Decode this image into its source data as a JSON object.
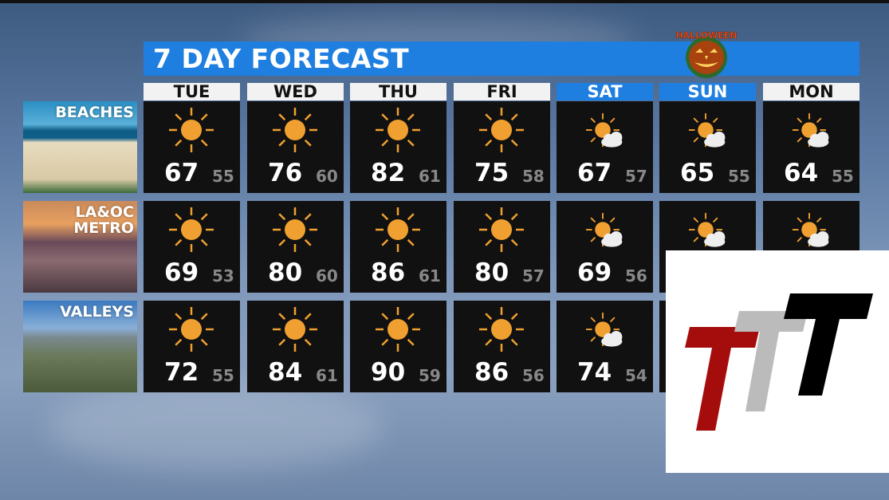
{
  "title": "7 DAY FORECAST",
  "badge": {
    "text": "HALLOWEEN",
    "icon": "jack-o-lantern-icon"
  },
  "colors": {
    "accent": "#1f7fe0",
    "sun": "#f0a030",
    "cell": "#111111"
  },
  "days": [
    {
      "label": "TUE",
      "weekend": false,
      "icon": "sunny"
    },
    {
      "label": "WED",
      "weekend": false,
      "icon": "sunny"
    },
    {
      "label": "THU",
      "weekend": false,
      "icon": "sunny"
    },
    {
      "label": "FRI",
      "weekend": false,
      "icon": "sunny"
    },
    {
      "label": "SAT",
      "weekend": true,
      "icon": "partly-cloudy"
    },
    {
      "label": "SUN",
      "weekend": true,
      "icon": "partly-cloudy"
    },
    {
      "label": "MON",
      "weekend": false,
      "icon": "partly-cloudy"
    }
  ],
  "regions": [
    {
      "name": "BEACHES",
      "name2": "",
      "temps": [
        [
          "67",
          "55"
        ],
        [
          "76",
          "60"
        ],
        [
          "82",
          "61"
        ],
        [
          "75",
          "58"
        ],
        [
          "67",
          "57"
        ],
        [
          "65",
          "55"
        ],
        [
          "64",
          "55"
        ]
      ]
    },
    {
      "name": "LA&OC",
      "name2": "METRO",
      "temps": [
        [
          "69",
          "53"
        ],
        [
          "80",
          "60"
        ],
        [
          "86",
          "61"
        ],
        [
          "80",
          "57"
        ],
        [
          "69",
          "56"
        ],
        [
          null,
          null
        ],
        [
          null,
          null
        ]
      ]
    },
    {
      "name": "VALLEYS",
      "name2": "",
      "temps": [
        [
          "72",
          "55"
        ],
        [
          "84",
          "61"
        ],
        [
          "90",
          "59"
        ],
        [
          "86",
          "56"
        ],
        [
          "74",
          "54"
        ],
        [
          null,
          null
        ],
        [
          null,
          null
        ]
      ]
    }
  ],
  "watermark": {
    "text": "TTT",
    "colors": [
      "#a50d0d",
      "#bbbbbb",
      "#000000"
    ]
  }
}
